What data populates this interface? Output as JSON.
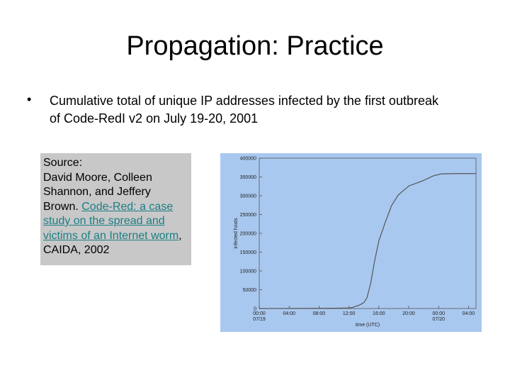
{
  "title": "Propagation: Practice",
  "bullet": "Cumulative total of unique IP addresses infected by the first outbreak of Code-RedI v2 on July 19-20, 2001",
  "source": {
    "label": "Source:",
    "authors": "David Moore, Colleen Shannon, and Jeffery Brown.",
    "link": "Code-Red: a case study on the spread and victims of an Internet worm",
    "tail": ", CAIDA, 2002"
  },
  "chart_data": {
    "type": "line",
    "xlabel": "time (UTC)",
    "ylabel": "infected hosts",
    "x": [
      0,
      4,
      8,
      10,
      12,
      12.5,
      13.5,
      14,
      14.4,
      14.9,
      15.4,
      16,
      16.8,
      17.7,
      18.6,
      20,
      21.9,
      23.3,
      24.3,
      26,
      28,
      29
    ],
    "series": [
      {
        "name": "infected hosts",
        "color": "#555555",
        "values": [
          0,
          200,
          500,
          800,
          1500,
          3000,
          10000,
          16000,
          28000,
          66000,
          123000,
          180000,
          226000,
          274000,
          302000,
          326000,
          340000,
          353000,
          358000,
          359000,
          359000,
          359000
        ]
      }
    ],
    "xlim": [
      0,
      29
    ],
    "xticks": [
      {
        "value": 0,
        "label": "00:00 07/19"
      },
      {
        "value": 4,
        "label": "04:00"
      },
      {
        "value": 8,
        "label": "08:00"
      },
      {
        "value": 12,
        "label": "12:00"
      },
      {
        "value": 16,
        "label": "16:00"
      },
      {
        "value": 20,
        "label": "20:00"
      },
      {
        "value": 24,
        "label": "00:00 07/20"
      },
      {
        "value": 28,
        "label": "04:00"
      }
    ],
    "ylim": [
      0,
      400000
    ],
    "yticks": [
      0,
      50000,
      100000,
      150000,
      200000,
      250000,
      300000,
      350000,
      400000
    ]
  }
}
